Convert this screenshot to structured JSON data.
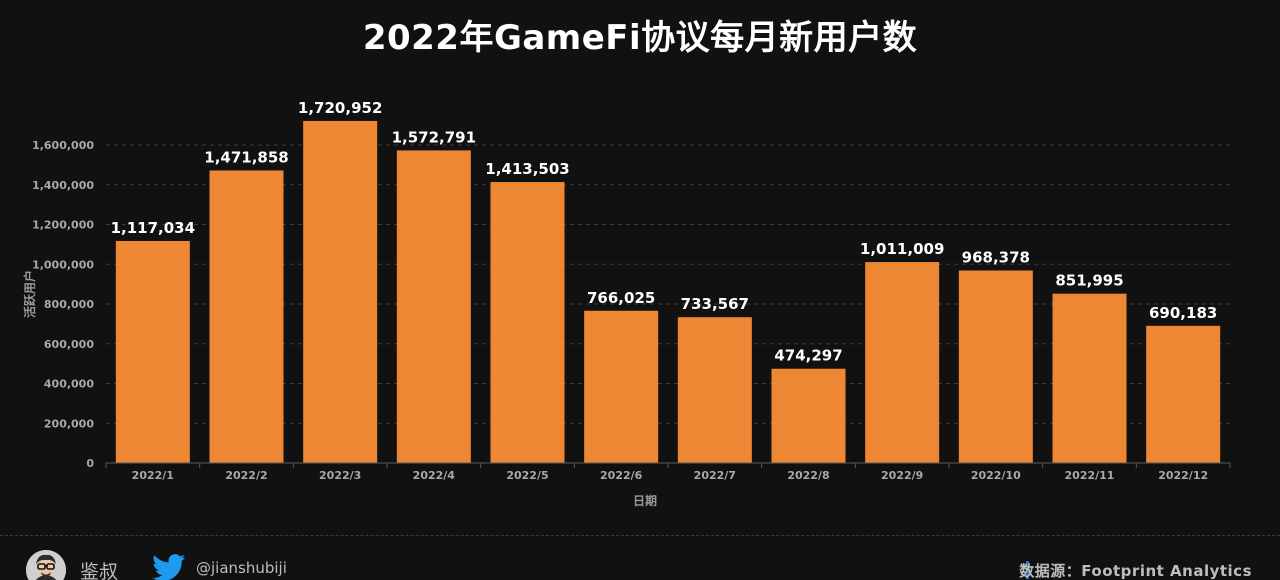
{
  "chart_data": {
    "type": "bar",
    "title": "2022年GameFi协议每月新用户数",
    "xlabel": "日期",
    "ylabel": "活跃用户",
    "categories": [
      "2022/1",
      "2022/2",
      "2022/3",
      "2022/4",
      "2022/5",
      "2022/6",
      "2022/7",
      "2022/8",
      "2022/9",
      "2022/10",
      "2022/11",
      "2022/12"
    ],
    "values": [
      1117034,
      1471858,
      1720952,
      1572791,
      1413503,
      766025,
      733567,
      474297,
      1011009,
      968378,
      851995,
      690183
    ],
    "value_labels": [
      "1,117,034",
      "1,471,858",
      "1,720,952",
      "1,572,791",
      "1,413,503",
      "766,025",
      "733,567",
      "474,297",
      "1,011,009",
      "968,378",
      "851,995",
      "690,183"
    ],
    "ylim": [
      0,
      1600000
    ],
    "yticks": [
      0,
      200000,
      400000,
      600000,
      800000,
      1000000,
      1200000,
      1400000,
      1600000
    ],
    "ytick_labels": [
      "0",
      "200,000",
      "400,000",
      "600,000",
      "800,000",
      "1,000,000",
      "1,200,000",
      "1,400,000",
      "1,600,000"
    ],
    "grid": true,
    "colors": {
      "bar": "#ee8733",
      "grid": "#3c3c3c",
      "axis_text": "#a9a9a9",
      "label_text": "#ffffff",
      "background": "#111112"
    }
  },
  "footer": {
    "author_name": "鉴叔",
    "twitter_handle": "@jianshubiji",
    "source": "数据源：Footprint  Analytics",
    "avatar_icon": "avatar",
    "social_icon": "twitter-bird-icon",
    "accent": "#1f6fd6"
  }
}
